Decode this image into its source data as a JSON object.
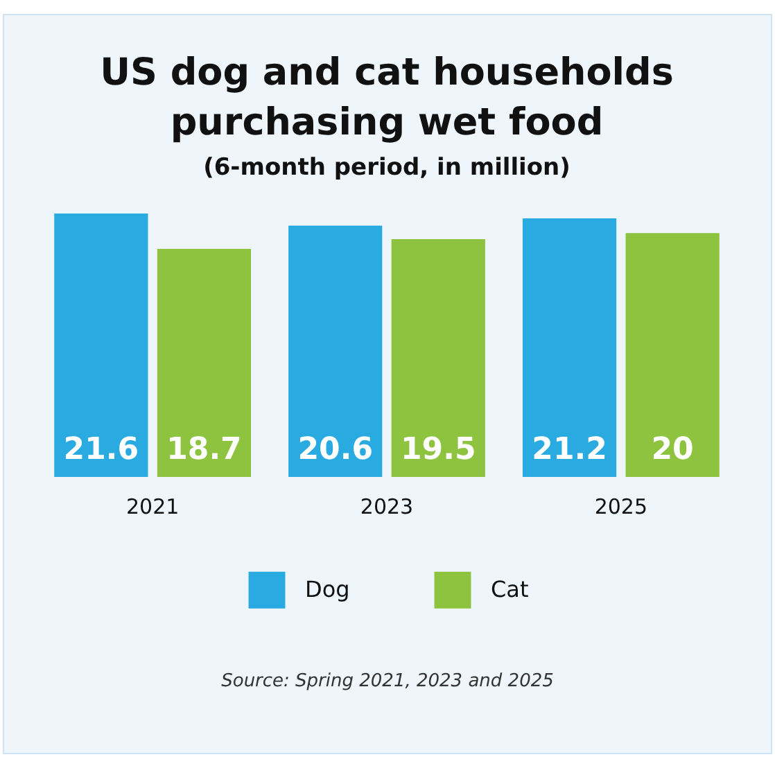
{
  "chart_data": {
    "type": "bar",
    "title": "US dog and cat households purchasing wet food",
    "subtitle": "(6-month period, in million)",
    "categories": [
      "2021",
      "2023",
      "2025"
    ],
    "series": [
      {
        "name": "Dog",
        "color": "#29abe2",
        "values": [
          21.6,
          20.6,
          21.2
        ]
      },
      {
        "name": "Cat",
        "color": "#8dc33f",
        "values": [
          18.7,
          19.5,
          20
        ]
      }
    ],
    "data_labels": true,
    "legend": "bottom",
    "grid": false,
    "annotations": [
      "Source: Spring 2021, 2023 and 2025"
    ]
  }
}
